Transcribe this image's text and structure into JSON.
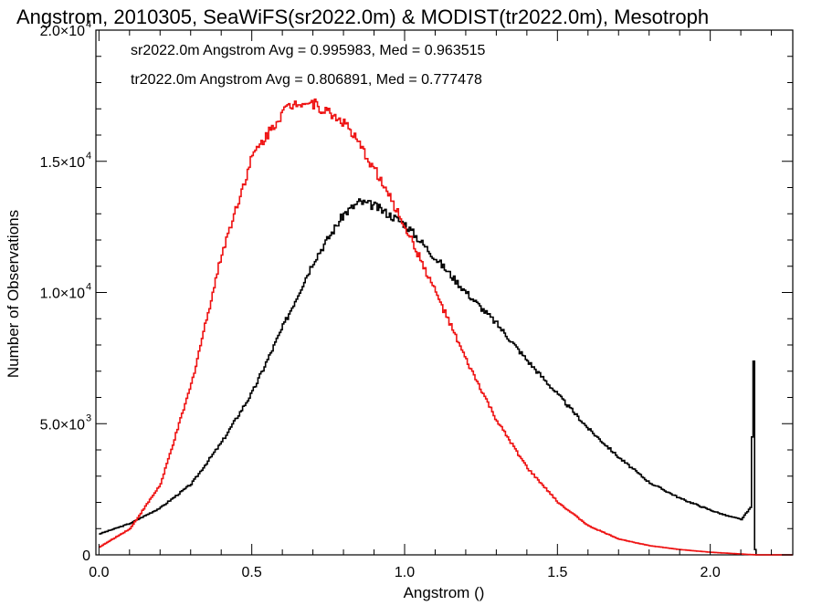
{
  "chart_data": {
    "type": "histogram-step",
    "title": "Angstrom, 2010305, SeaWiFS(sr2022.0m) & MODIST(tr2022.0m), Mesotroph",
    "xlabel": "Angstrom ()",
    "ylabel": "Number of Observations",
    "xlim": [
      -0.01,
      2.27
    ],
    "ylim": [
      0,
      20000
    ],
    "x_ticks": [
      {
        "value": 0.0,
        "label": "0.0"
      },
      {
        "value": 0.5,
        "label": "0.5"
      },
      {
        "value": 1.0,
        "label": "1.0"
      },
      {
        "value": 1.5,
        "label": "1.5"
      },
      {
        "value": 2.0,
        "label": "2.0"
      }
    ],
    "y_ticks": [
      {
        "value": 0,
        "label": "0",
        "exp": ""
      },
      {
        "value": 5000,
        "label": "5.0×10",
        "exp": "3"
      },
      {
        "value": 10000,
        "label": "1.0×10",
        "exp": "4"
      },
      {
        "value": 15000,
        "label": "1.5×10",
        "exp": "4"
      },
      {
        "value": 20000,
        "label": "2.0×10",
        "exp": "4"
      }
    ],
    "legend": [
      {
        "text": "sr2022.0m Angstrom Avg = 0.995983, Med = 0.963515",
        "color": "#000000"
      },
      {
        "text": "tr2022.0m Angstrom Avg = 0.806891, Med = 0.777478",
        "color": "#ee1111"
      }
    ],
    "series": [
      {
        "color": "#000000",
        "x": [
          0.0,
          0.1,
          0.2,
          0.3,
          0.4,
          0.5,
          0.6,
          0.7,
          0.8,
          0.85,
          0.9,
          1.0,
          1.1,
          1.2,
          1.3,
          1.4,
          1.5,
          1.6,
          1.7,
          1.8,
          1.9,
          2.0,
          2.05,
          2.1,
          2.13,
          2.14,
          2.145,
          2.15,
          2.16,
          2.17
        ],
        "y": [
          800,
          1200,
          1800,
          2700,
          4300,
          6200,
          8700,
          11200,
          13000,
          13450,
          13300,
          12600,
          11300,
          10000,
          8800,
          7400,
          6100,
          4800,
          3700,
          2750,
          2150,
          1700,
          1500,
          1350,
          1800,
          7300,
          200,
          0,
          0,
          0
        ]
      },
      {
        "color": "#ee1111",
        "x": [
          0.0,
          0.1,
          0.2,
          0.3,
          0.4,
          0.5,
          0.6,
          0.65,
          0.7,
          0.8,
          0.9,
          1.0,
          1.1,
          1.2,
          1.3,
          1.4,
          1.5,
          1.6,
          1.7,
          1.8,
          1.9,
          2.0,
          2.1,
          2.15
        ],
        "y": [
          300,
          1000,
          2700,
          6500,
          11500,
          15200,
          16900,
          17300,
          17200,
          16500,
          14700,
          12500,
          10000,
          7400,
          5100,
          3300,
          2000,
          1100,
          600,
          350,
          200,
          100,
          30,
          0
        ]
      }
    ]
  }
}
